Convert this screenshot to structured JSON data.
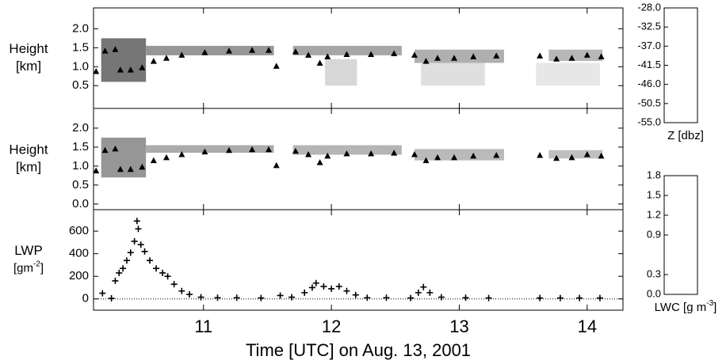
{
  "chart_data": [
    {
      "type": "cloud",
      "ylabel": [
        "Height",
        "[km]"
      ],
      "xlim": [
        10.14,
        14.28
      ],
      "xticks": [
        11,
        12,
        13,
        14
      ],
      "show_xtick_labels": false,
      "ylim": [
        -0.1,
        2.55
      ],
      "yticks": [
        0.5,
        {
          "value": 1,
          "label": "1.0"
        },
        1.5,
        {
          "value": 2,
          "label": "2.0"
        }
      ],
      "colorbar": 3,
      "cells": [
        {
          "start": 10.2,
          "end": 10.55,
          "base": 0.6,
          "top": 1.75,
          "z": -38
        },
        {
          "start": 10.55,
          "end": 11.55,
          "base": 1.3,
          "top": 1.55,
          "z": -42
        },
        {
          "start": 11.7,
          "end": 12.55,
          "base": 1.3,
          "top": 1.55,
          "z": -44
        },
        {
          "start": 11.95,
          "end": 12.2,
          "base": 0.5,
          "top": 1.2,
          "z": -50
        },
        {
          "start": 12.65,
          "end": 13.35,
          "base": 1.1,
          "top": 1.45,
          "z": -45
        },
        {
          "start": 12.7,
          "end": 13.2,
          "base": 0.5,
          "top": 1.1,
          "z": -51
        },
        {
          "start": 13.7,
          "end": 14.12,
          "base": 1.15,
          "top": 1.45,
          "z": -46
        },
        {
          "start": 13.6,
          "end": 14.1,
          "base": 0.5,
          "top": 1.1,
          "z": -52
        }
      ],
      "markers": {
        "x": [
          10.16,
          10.23,
          10.31,
          10.35,
          10.43,
          10.52,
          10.61,
          10.71,
          10.83,
          11.01,
          11.2,
          11.38,
          11.51,
          11.57,
          11.72,
          11.82,
          11.91,
          11.97,
          12.12,
          12.31,
          12.49,
          12.65,
          12.74,
          12.83,
          12.96,
          13.11,
          13.29,
          13.63,
          13.76,
          13.88,
          14.0,
          14.11
        ],
        "values": [
          0.88,
          1.42,
          1.46,
          0.92,
          0.92,
          0.98,
          1.15,
          1.23,
          1.31,
          1.38,
          1.42,
          1.44,
          1.44,
          1.02,
          1.4,
          1.31,
          1.1,
          1.27,
          1.33,
          1.33,
          1.35,
          1.31,
          1.15,
          1.23,
          1.23,
          1.27,
          1.29,
          1.29,
          1.21,
          1.23,
          1.31,
          1.27
        ]
      }
    },
    {
      "type": "cloud",
      "ylabel": [
        "Height",
        "[km]"
      ],
      "xlim": [
        10.14,
        14.28
      ],
      "xticks": [
        11,
        12,
        13,
        14
      ],
      "show_xtick_labels": false,
      "ylim": [
        -0.15,
        2.52
      ],
      "yticks": [
        {
          "value": 0,
          "label": "0.0"
        },
        0.5,
        {
          "value": 1,
          "label": "1.0"
        },
        1.5,
        {
          "value": 2,
          "label": "2.0"
        }
      ],
      "colorbar": 4,
      "cells": [
        {
          "start": 10.2,
          "end": 10.55,
          "base": 0.7,
          "top": 1.75,
          "z": 0.7
        },
        {
          "start": 10.55,
          "end": 11.55,
          "base": 1.35,
          "top": 1.55,
          "z": 0.5
        },
        {
          "start": 11.7,
          "end": 12.55,
          "base": 1.3,
          "top": 1.55,
          "z": 0.4
        },
        {
          "start": 12.65,
          "end": 13.35,
          "base": 1.15,
          "top": 1.45,
          "z": 0.35
        },
        {
          "start": 13.7,
          "end": 14.12,
          "base": 1.2,
          "top": 1.42,
          "z": 0.3
        }
      ],
      "markers": {
        "x": [
          10.16,
          10.23,
          10.31,
          10.35,
          10.43,
          10.52,
          10.61,
          10.71,
          10.83,
          11.01,
          11.2,
          11.38,
          11.51,
          11.57,
          11.72,
          11.82,
          11.91,
          11.97,
          12.12,
          12.31,
          12.49,
          12.65,
          12.74,
          12.83,
          12.96,
          13.11,
          13.29,
          13.63,
          13.76,
          13.88,
          14.0,
          14.11
        ],
        "values": [
          0.88,
          1.42,
          1.46,
          0.92,
          0.92,
          0.98,
          1.15,
          1.23,
          1.31,
          1.38,
          1.42,
          1.44,
          1.44,
          1.02,
          1.4,
          1.31,
          1.1,
          1.27,
          1.33,
          1.33,
          1.35,
          1.31,
          1.15,
          1.23,
          1.23,
          1.27,
          1.29,
          1.29,
          1.21,
          1.23,
          1.31,
          1.27
        ]
      }
    },
    {
      "type": "scatter",
      "ylabel": [
        "LWP"
      ],
      "yunit": {
        "text": "[gm",
        "sup": "-2",
        "end": "]"
      },
      "xlabel": "Time [UTC] on Aug. 13, 2001",
      "xlim": [
        10.14,
        14.28
      ],
      "xticks": [
        11,
        12,
        13,
        14
      ],
      "show_xtick_labels": true,
      "ylim": [
        -100,
        790
      ],
      "yticks": [
        0,
        200,
        400,
        600
      ],
      "hline": 0,
      "x": [
        10.21,
        10.28,
        10.31,
        10.34,
        10.37,
        10.4,
        10.43,
        10.46,
        10.48,
        10.49,
        10.51,
        10.54,
        10.58,
        10.63,
        10.68,
        10.72,
        10.77,
        10.83,
        10.89,
        10.98,
        11.11,
        11.26,
        11.45,
        11.6,
        11.69,
        11.79,
        11.85,
        11.88,
        11.94,
        12.0,
        12.06,
        12.12,
        12.19,
        12.28,
        12.43,
        12.62,
        12.68,
        12.72,
        12.77,
        12.86,
        13.05,
        13.23,
        13.63,
        13.79,
        13.94,
        14.1
      ],
      "values": [
        50,
        5,
        160,
        230,
        270,
        340,
        410,
        510,
        690,
        620,
        480,
        420,
        340,
        270,
        230,
        200,
        130,
        70,
        40,
        15,
        10,
        10,
        8,
        30,
        15,
        55,
        100,
        140,
        110,
        90,
        110,
        70,
        35,
        10,
        10,
        8,
        55,
        105,
        55,
        15,
        10,
        8,
        8,
        8,
        8,
        8
      ]
    },
    {
      "type": "colorbar",
      "label": "Z [dbz]",
      "lim": [
        -55,
        -28
      ],
      "colors": [
        "#ffffff",
        "#000000"
      ],
      "ticks": [
        {
          "value": -28,
          "label": "-28.0"
        },
        -32.5,
        {
          "value": -37,
          "label": "-37.0"
        },
        -41.5,
        {
          "value": -46,
          "label": "-46.0"
        },
        -50.5,
        {
          "value": -55,
          "label": "-55.0"
        }
      ]
    },
    {
      "type": "colorbar",
      "label": "LWC [g m",
      "label_sup": "-3",
      "label_end": "]",
      "lim": [
        0,
        1.8
      ],
      "colors": [
        "#d8d8d8",
        "#000000"
      ],
      "ticks": [
        1.8,
        1.5,
        1.2,
        0.9,
        0.3,
        {
          "value": 0,
          "label": "0.0"
        }
      ]
    }
  ]
}
